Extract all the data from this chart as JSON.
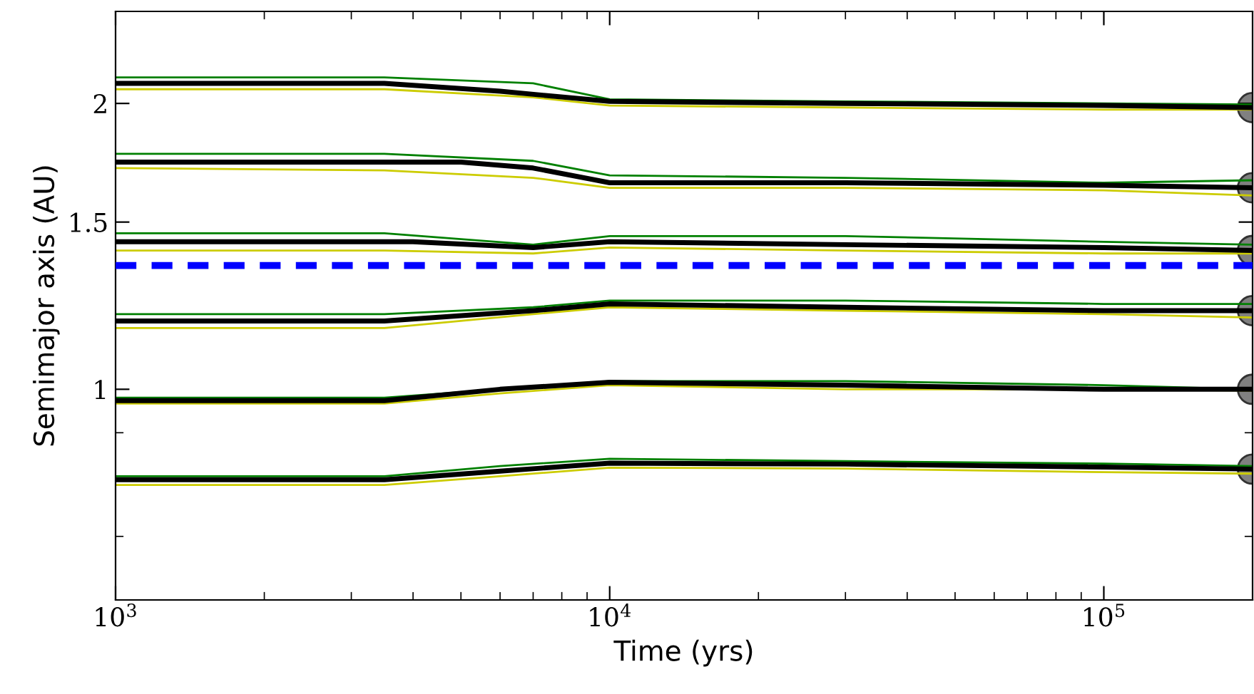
{
  "chart_data": {
    "type": "line",
    "xlabel": "Time (yrs)",
    "ylabel": "Semimajor axis (AU)",
    "log": "xy",
    "grid": false,
    "legend": false,
    "marker": "none",
    "line_style": "solid",
    "xlim": [
      1000,
      200000
    ],
    "xticks": [
      {
        "value": 1000,
        "label": "10$^{3}$"
      },
      {
        "value": 2000,
        "label": null
      },
      {
        "value": 3000,
        "label": null
      },
      {
        "value": 4000,
        "label": null
      },
      {
        "value": 5000,
        "label": null
      },
      {
        "value": 6000,
        "label": null
      },
      {
        "value": 7000,
        "label": null
      },
      {
        "value": 8000,
        "label": null
      },
      {
        "value": 9000,
        "label": null
      },
      {
        "value": 10000,
        "label": "10$^{4}$"
      },
      {
        "value": 20000,
        "label": null
      },
      {
        "value": 30000,
        "label": null
      },
      {
        "value": 40000,
        "label": null
      },
      {
        "value": 50000,
        "label": null
      },
      {
        "value": 60000,
        "label": null
      },
      {
        "value": 70000,
        "label": null
      },
      {
        "value": 80000,
        "label": null
      },
      {
        "value": 90000,
        "label": null
      },
      {
        "value": 100000,
        "label": "10$^{5}$"
      },
      {
        "value": 200000,
        "label": null
      }
    ],
    "ylim": [
      0.6,
      2.5
    ],
    "yticks": [
      {
        "value": 0.7,
        "label": null
      },
      {
        "value": 0.9,
        "label": null
      },
      1,
      1.5,
      2
    ],
    "ref_lines": [
      {
        "axis": "y",
        "value": 1.35,
        "color": "#0000ff",
        "line_style": "dashed"
      }
    ],
    "series": [
      {
        "color": "#008000",
        "x": [
          1000,
          3500,
          7000,
          10000,
          30000,
          100000,
          200000
        ],
        "values": [
          2.13,
          2.13,
          2.1,
          2.02,
          2.01,
          2.0,
          1.995
        ]
      },
      {
        "color": "#cccc00",
        "x": [
          1000,
          3500,
          7000,
          10000,
          30000,
          100000,
          200000
        ],
        "values": [
          2.07,
          2.07,
          2.03,
          1.99,
          1.98,
          1.97,
          1.97
        ]
      },
      {
        "color": "#000000",
        "x": [
          1000,
          3500,
          6000,
          10000,
          30000,
          100000,
          200000
        ],
        "values": [
          2.1,
          2.1,
          2.06,
          2.01,
          2.0,
          1.99,
          1.98
        ]
      },
      {
        "color": "#008000",
        "x": [
          1000,
          3500,
          7000,
          10000,
          30000,
          100000,
          200000
        ],
        "values": [
          1.77,
          1.77,
          1.74,
          1.68,
          1.67,
          1.65,
          1.66
        ]
      },
      {
        "color": "#cccc00",
        "x": [
          1000,
          3500,
          7000,
          10000,
          30000,
          100000,
          200000
        ],
        "values": [
          1.71,
          1.7,
          1.67,
          1.63,
          1.63,
          1.62,
          1.6
        ]
      },
      {
        "color": "#000000",
        "x": [
          1000,
          5000,
          7000,
          10000,
          30000,
          100000,
          200000
        ],
        "values": [
          1.735,
          1.735,
          1.71,
          1.65,
          1.65,
          1.64,
          1.63
        ]
      },
      {
        "color": "#008000",
        "x": [
          1000,
          3500,
          7000,
          10000,
          30000,
          100000,
          200000
        ],
        "values": [
          1.46,
          1.46,
          1.42,
          1.45,
          1.45,
          1.43,
          1.42
        ]
      },
      {
        "color": "#cccc00",
        "x": [
          1000,
          3500,
          7000,
          10000,
          30000,
          100000,
          200000
        ],
        "values": [
          1.4,
          1.4,
          1.39,
          1.41,
          1.4,
          1.39,
          1.39
        ]
      },
      {
        "color": "#000000",
        "x": [
          1000,
          4000,
          7000,
          10000,
          30000,
          100000,
          200000
        ],
        "values": [
          1.43,
          1.43,
          1.41,
          1.43,
          1.42,
          1.41,
          1.4
        ]
      },
      {
        "color": "#008000",
        "x": [
          1000,
          3500,
          7000,
          10000,
          30000,
          100000,
          200000
        ],
        "values": [
          1.2,
          1.2,
          1.22,
          1.24,
          1.24,
          1.23,
          1.23
        ]
      },
      {
        "color": "#cccc00",
        "x": [
          1000,
          3500,
          7000,
          10000,
          30000,
          100000,
          200000
        ],
        "values": [
          1.16,
          1.16,
          1.2,
          1.22,
          1.21,
          1.2,
          1.19
        ]
      },
      {
        "color": "#000000",
        "x": [
          1000,
          3500,
          7000,
          10000,
          30000,
          100000,
          200000
        ],
        "values": [
          1.18,
          1.18,
          1.21,
          1.23,
          1.22,
          1.21,
          1.21
        ]
      },
      {
        "color": "#008000",
        "x": [
          1000,
          3500,
          6000,
          10000,
          30000,
          100000,
          200000
        ],
        "values": [
          0.98,
          0.98,
          1.0,
          1.02,
          1.02,
          1.01,
          1.0
        ]
      },
      {
        "color": "#cccc00",
        "x": [
          1000,
          3500,
          6000,
          10000,
          30000,
          100000,
          200000
        ],
        "values": [
          0.966,
          0.966,
          0.99,
          1.01,
          1.0,
          1.0,
          0.997
        ]
      },
      {
        "color": "#000000",
        "x": [
          1000,
          3500,
          6000,
          10000,
          30000,
          100000,
          200000
        ],
        "values": [
          0.973,
          0.973,
          1.0,
          1.017,
          1.01,
          1.0,
          1.0
        ]
      },
      {
        "color": "#008000",
        "x": [
          1000,
          3500,
          6000,
          10000,
          30000,
          100000,
          200000
        ],
        "values": [
          0.81,
          0.81,
          0.83,
          0.845,
          0.84,
          0.835,
          0.83
        ]
      },
      {
        "color": "#cccc00",
        "x": [
          1000,
          3500,
          6000,
          10000,
          30000,
          100000,
          200000
        ],
        "values": [
          0.793,
          0.793,
          0.81,
          0.827,
          0.825,
          0.818,
          0.815
        ]
      },
      {
        "color": "#000000",
        "x": [
          1000,
          3500,
          6000,
          10000,
          30000,
          100000,
          200000
        ],
        "values": [
          0.803,
          0.803,
          0.82,
          0.836,
          0.834,
          0.828,
          0.824
        ]
      },
      {
        "type": "scatter",
        "color": "#808080",
        "marker": "circle",
        "x": [
          200000,
          200000,
          200000,
          200000,
          200000,
          200000
        ],
        "values": [
          1.98,
          1.63,
          1.4,
          1.21,
          1.0,
          0.824
        ]
      }
    ]
  }
}
